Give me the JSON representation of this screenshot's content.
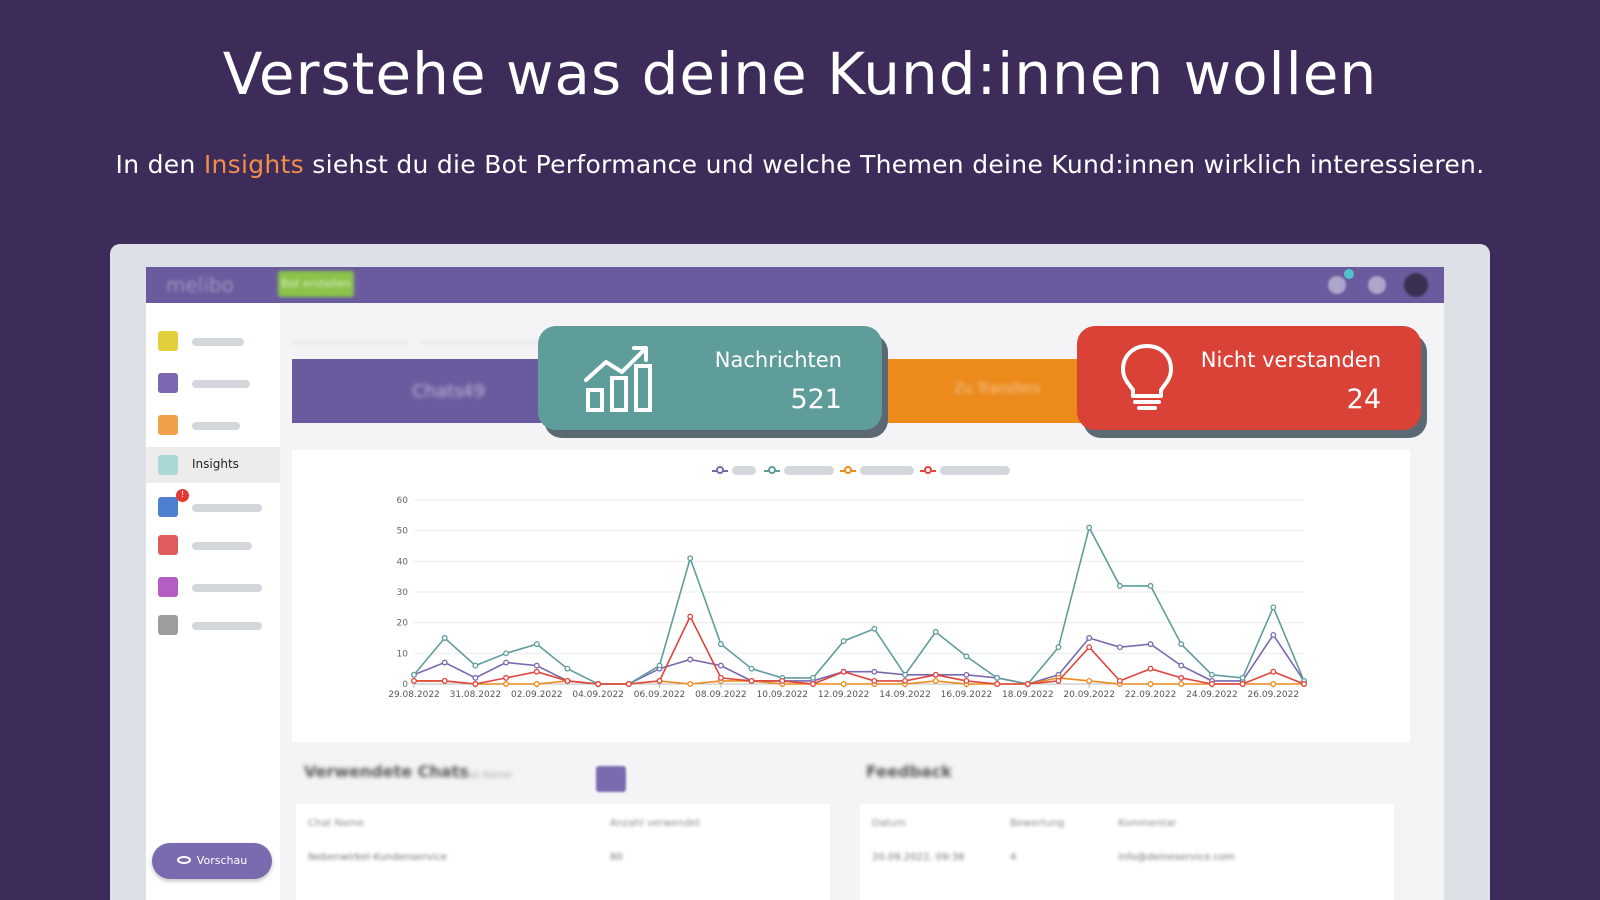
{
  "headline": "Verstehe was deine Kund:innen wollen",
  "subline": {
    "before": "In den ",
    "accent": "Insights",
    "after": " siehst du die Bot Performance und welche Themen deine Kund:innen wirklich interessieren."
  },
  "app": {
    "logo": "melibo",
    "create_button": "Bot erstellen",
    "sidebar": {
      "active_item": "Insights",
      "preview_button": "Vorschau",
      "badge": "!"
    },
    "kpis": {
      "chats_label": "Chats",
      "chats_value": "49",
      "transfers_label": "Zu Transfers"
    },
    "lower": {
      "left_title": "Verwendete Chats",
      "left_search_placeholder": "Chat Name",
      "left_headers": [
        "Chat Name",
        "Anzahl verwendet"
      ],
      "left_row": [
        "Nebenwirkel-Kundenservice",
        "80"
      ],
      "right_title": "Feedback",
      "right_headers": [
        "Datum",
        "Bewertung",
        "Kommentar"
      ],
      "right_row": [
        "20.09.2022, 09:38",
        "4",
        "info@deineservice.com"
      ]
    }
  },
  "callouts": {
    "messages": {
      "label": "Nachrichten",
      "value": "521"
    },
    "not_understood": {
      "label": "Nicht verstanden",
      "value": "24"
    }
  },
  "colors": {
    "background": "#3d2c5a",
    "accent": "#f08d49",
    "teal": "#5f9d9b",
    "red": "#da4238",
    "purple": "#6a5b9e"
  },
  "chart_data": {
    "type": "line",
    "x": [
      "29.08.2022",
      "30.08.2022",
      "31.08.2022",
      "01.09.2022",
      "02.09.2022",
      "03.09.2022",
      "04.09.2022",
      "05.09.2022",
      "06.09.2022",
      "07.09.2022",
      "08.09.2022",
      "09.09.2022",
      "10.09.2022",
      "11.09.2022",
      "12.09.2022",
      "13.09.2022",
      "14.09.2022",
      "15.09.2022",
      "16.09.2022",
      "17.09.2022",
      "18.09.2022",
      "19.09.2022",
      "20.09.2022",
      "21.09.2022",
      "22.09.2022",
      "23.09.2022",
      "24.09.2022",
      "25.09.2022",
      "26.09.2022",
      "27.09.2022"
    ],
    "tick_labels": [
      "29.08.2022",
      "31.08.2022",
      "02.09.2022",
      "04.09.2022",
      "06.09.2022",
      "08.09.2022",
      "10.09.2022",
      "12.09.2022",
      "14.09.2022",
      "16.09.2022",
      "18.09.2022",
      "20.09.2022",
      "22.09.2022",
      "24.09.2022",
      "26.09.2022"
    ],
    "yticks": [
      0,
      10,
      20,
      30,
      40,
      50,
      60
    ],
    "ylim": [
      0,
      60
    ],
    "grid": true,
    "legend_position": "top",
    "series": [
      {
        "color": "#7b68b0",
        "values": [
          3,
          7,
          2,
          7,
          6,
          1,
          0,
          0,
          5,
          8,
          6,
          1,
          1,
          1,
          4,
          4,
          3,
          3,
          3,
          2,
          0,
          3,
          15,
          12,
          13,
          6,
          1,
          1,
          16,
          1
        ]
      },
      {
        "color": "#5f9d9b",
        "values": [
          3,
          15,
          6,
          10,
          13,
          5,
          0,
          0,
          6,
          41,
          13,
          5,
          2,
          2,
          14,
          18,
          3,
          17,
          9,
          2,
          0,
          12,
          51,
          32,
          32,
          13,
          3,
          2,
          25,
          1
        ]
      },
      {
        "color": "#ec8a1c",
        "values": [
          1,
          1,
          0,
          0,
          0,
          1,
          0,
          0,
          1,
          0,
          1,
          1,
          0,
          0,
          0,
          0,
          0,
          1,
          0,
          0,
          0,
          2,
          1,
          0,
          0,
          0,
          0,
          0,
          0,
          0
        ]
      },
      {
        "color": "#e0443c",
        "values": [
          1,
          1,
          0,
          2,
          4,
          1,
          0,
          0,
          1,
          22,
          2,
          1,
          1,
          0,
          4,
          1,
          1,
          3,
          1,
          0,
          0,
          1,
          12,
          1,
          5,
          2,
          0,
          0,
          4,
          0
        ]
      }
    ]
  }
}
